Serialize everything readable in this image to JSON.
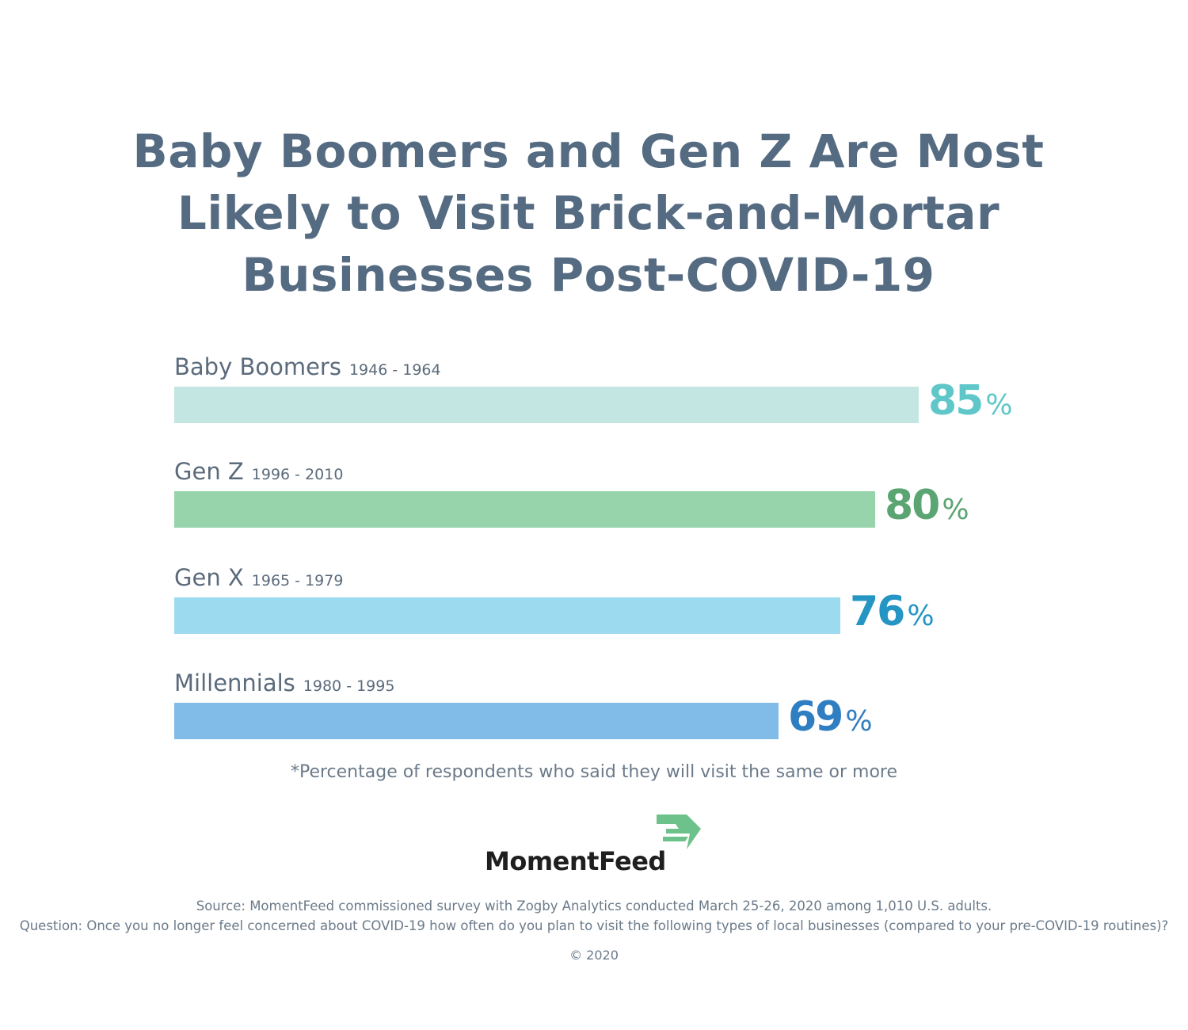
{
  "title_lines": [
    "Baby Boomers and Gen Z Are Most",
    "Likely to Visit Brick-and-Mortar",
    "Businesses Post-COVID-19"
  ],
  "percent_sign": "%",
  "colors": {
    "title": "#556b82",
    "label": "#5b6b7c",
    "bar_0": "#c4e6e3",
    "value_0": "#5fc7c9",
    "bar_1": "#97d3ab",
    "value_1": "#5aa571",
    "bar_2": "#9cdaf0",
    "value_2": "#2596c4",
    "bar_3": "#81bbe8",
    "value_3": "#2f7ec2",
    "logo_mark": "#6cc28a"
  },
  "chart_data": {
    "type": "bar",
    "orientation": "horizontal",
    "title": "Baby Boomers and Gen Z Are Most Likely to Visit Brick-and-Mortar Businesses Post-COVID-19",
    "categories": [
      "Baby Boomers",
      "Gen Z",
      "Gen X",
      "Millennials"
    ],
    "category_years": [
      "1946 - 1964",
      "1996 - 2010",
      "1965 - 1979",
      "1980 - 1995"
    ],
    "values": [
      85,
      80,
      76,
      69
    ],
    "value_display": [
      "85",
      "80",
      "76",
      "69"
    ],
    "unit": "%",
    "xlim": [
      0,
      100
    ],
    "grid": false,
    "legend": "none"
  },
  "footnote": "*Percentage of respondents who said they will visit the same or more",
  "logo": {
    "text": "MomentFeed",
    "mark_icon": "momentfeed-flag-icon"
  },
  "source_lines": [
    "Source: MomentFeed commissioned survey with Zogby Analytics conducted March 25-26, 2020 among 1,010 U.S. adults.",
    "Question: Once you no longer feel concerned about COVID-19 how often do you plan to visit the following types of local businesses (compared to your pre-COVID-19 routines)?"
  ],
  "copyright": "© 2020"
}
